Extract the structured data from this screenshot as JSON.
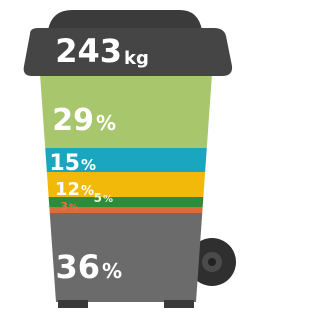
{
  "lid": {
    "amount": "243",
    "unit": "kg"
  },
  "segments": [
    {
      "value": "29",
      "unit": "%"
    },
    {
      "value": "15",
      "unit": "%"
    },
    {
      "value": "12",
      "unit": "%"
    },
    {
      "value": "5",
      "unit": "%"
    },
    {
      "value": "3",
      "unit": "%"
    },
    {
      "value": "36",
      "unit": "%"
    }
  ]
}
